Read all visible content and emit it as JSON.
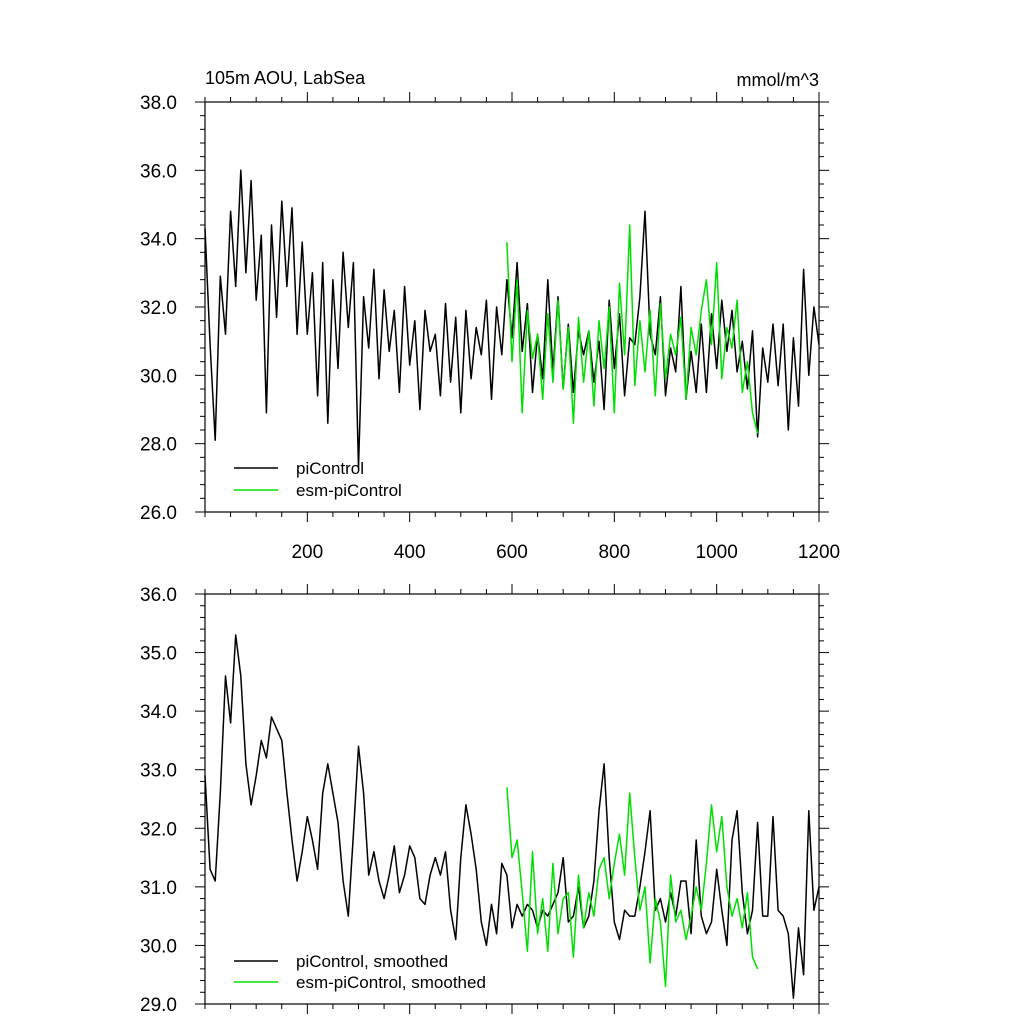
{
  "colors": {
    "piControl": "#000000",
    "esm_piControl": "#00e000"
  },
  "chart_data": [
    {
      "type": "line",
      "title": "105m AOU, LabSea",
      "units": "mmol/m^3",
      "xlim": [
        0,
        1200
      ],
      "ylim": [
        26,
        38
      ],
      "x_ticks": [
        200,
        400,
        600,
        800,
        1000,
        1200
      ],
      "x_tick_labels": [
        "200",
        "400",
        "600",
        "800",
        "1000",
        "1200"
      ],
      "y_ticks": [
        26,
        28,
        30,
        32,
        34,
        36,
        38
      ],
      "y_tick_labels": [
        "26.0",
        "28.0",
        "30.0",
        "32.0",
        "34.0",
        "36.0",
        "38.0"
      ],
      "legend": [
        "piControl",
        "esm-piControl"
      ],
      "legend_position": "bottom-left",
      "series": [
        {
          "name": "piControl",
          "x": [
            0,
            10,
            20,
            30,
            40,
            50,
            60,
            70,
            80,
            90,
            100,
            110,
            120,
            130,
            140,
            150,
            160,
            170,
            180,
            190,
            200,
            210,
            220,
            230,
            240,
            250,
            260,
            270,
            280,
            290,
            300,
            310,
            320,
            330,
            340,
            350,
            360,
            370,
            380,
            390,
            400,
            410,
            420,
            430,
            440,
            450,
            460,
            470,
            480,
            490,
            500,
            510,
            520,
            530,
            540,
            550,
            560,
            570,
            580,
            590,
            600,
            610,
            620,
            630,
            640,
            650,
            660,
            670,
            680,
            690,
            700,
            710,
            720,
            730,
            740,
            750,
            760,
            770,
            780,
            790,
            800,
            810,
            820,
            830,
            840,
            850,
            860,
            870,
            880,
            890,
            900,
            910,
            920,
            930,
            940,
            950,
            960,
            970,
            980,
            990,
            1000,
            1010,
            1020,
            1030,
            1040,
            1050,
            1060,
            1070,
            1080,
            1090,
            1100,
            1110,
            1120,
            1130,
            1140,
            1150,
            1160,
            1170,
            1180,
            1190,
            1200
          ],
          "values": [
            34.3,
            30.9,
            28.1,
            32.9,
            31.2,
            34.8,
            32.6,
            36.0,
            33.0,
            35.7,
            32.2,
            34.1,
            28.9,
            34.4,
            31.7,
            35.1,
            32.6,
            34.9,
            31.2,
            33.9,
            31.2,
            33.0,
            29.4,
            33.3,
            28.6,
            32.8,
            30.2,
            33.6,
            31.4,
            33.3,
            27.3,
            32.3,
            30.8,
            33.1,
            29.9,
            32.5,
            30.7,
            31.9,
            29.5,
            32.6,
            30.3,
            31.6,
            29.0,
            31.9,
            30.7,
            31.2,
            29.4,
            32.1,
            29.8,
            31.7,
            28.9,
            31.9,
            29.9,
            31.4,
            30.6,
            32.2,
            29.3,
            32.0,
            30.6,
            32.8,
            31.1,
            33.3,
            30.7,
            32.1,
            29.5,
            31.2,
            29.9,
            32.8,
            30.1,
            32.3,
            29.6,
            31.5,
            29.5,
            31.3,
            30.6,
            31.3,
            29.8,
            31.0,
            29.0,
            32.2,
            30.2,
            31.8,
            29.4,
            31.1,
            30.9,
            32.3,
            34.8,
            31.2,
            30.6,
            32.3,
            29.4,
            30.8,
            30.1,
            32.6,
            29.3,
            30.7,
            29.5,
            31.5,
            29.5,
            31.8,
            30.2,
            32.2,
            30.7,
            31.9,
            30.1,
            31.0,
            29.6,
            31.3,
            28.2,
            30.8,
            29.8,
            31.5,
            29.7,
            31.5,
            28.4,
            31.1,
            29.1,
            33.1,
            30.0,
            32.0,
            30.9
          ]
        },
        {
          "name": "esm-piControl",
          "x": [
            590,
            600,
            610,
            620,
            630,
            640,
            650,
            660,
            670,
            680,
            690,
            700,
            710,
            720,
            730,
            740,
            750,
            760,
            770,
            780,
            790,
            800,
            810,
            820,
            830,
            840,
            850,
            860,
            870,
            880,
            890,
            900,
            910,
            920,
            930,
            940,
            950,
            960,
            970,
            980,
            990,
            1000,
            1010,
            1020,
            1030,
            1040,
            1050,
            1060,
            1070,
            1080
          ],
          "values": [
            33.9,
            30.4,
            32.8,
            28.9,
            31.9,
            30.5,
            31.2,
            29.3,
            31.8,
            29.8,
            32.2,
            29.6,
            31.4,
            28.6,
            31.7,
            29.8,
            31.3,
            29.1,
            31.6,
            30.2,
            32.0,
            28.9,
            32.7,
            30.6,
            34.4,
            29.7,
            31.6,
            30.1,
            31.9,
            29.4,
            32.1,
            29.9,
            31.2,
            30.6,
            31.7,
            29.3,
            31.4,
            30.6,
            31.9,
            32.8,
            30.9,
            33.3,
            29.9,
            31.4,
            30.8,
            32.2,
            29.5,
            30.4,
            28.9,
            28.3
          ]
        }
      ]
    },
    {
      "type": "line",
      "xlim": [
        0,
        1200
      ],
      "ylim": [
        29,
        36
      ],
      "y_ticks": [
        29,
        30,
        31,
        32,
        33,
        34,
        35,
        36
      ],
      "y_tick_labels": [
        "29.0",
        "30.0",
        "31.0",
        "32.0",
        "33.0",
        "34.0",
        "35.0",
        "36.0"
      ],
      "legend": [
        "piControl, smoothed",
        "esm-piControl, smoothed"
      ],
      "legend_position": "bottom-left",
      "series": [
        {
          "name": "piControl, smoothed",
          "x": [
            0,
            10,
            20,
            30,
            40,
            50,
            60,
            70,
            80,
            90,
            100,
            110,
            120,
            130,
            140,
            150,
            160,
            170,
            180,
            190,
            200,
            210,
            220,
            230,
            240,
            250,
            260,
            270,
            280,
            290,
            300,
            310,
            320,
            330,
            340,
            350,
            360,
            370,
            380,
            390,
            400,
            410,
            420,
            430,
            440,
            450,
            460,
            470,
            480,
            490,
            500,
            510,
            520,
            530,
            540,
            550,
            560,
            570,
            580,
            590,
            600,
            610,
            620,
            630,
            640,
            650,
            660,
            670,
            680,
            690,
            700,
            710,
            720,
            730,
            740,
            750,
            760,
            770,
            780,
            790,
            800,
            810,
            820,
            830,
            840,
            850,
            860,
            870,
            880,
            890,
            900,
            910,
            920,
            930,
            940,
            950,
            960,
            970,
            980,
            990,
            1000,
            1010,
            1020,
            1030,
            1040,
            1050,
            1060,
            1070,
            1080,
            1090,
            1100,
            1110,
            1120,
            1130,
            1140,
            1150,
            1160,
            1170,
            1180,
            1190,
            1200
          ],
          "values": [
            32.9,
            31.3,
            31.1,
            32.6,
            34.6,
            33.8,
            35.3,
            34.6,
            33.1,
            32.4,
            32.9,
            33.5,
            33.2,
            33.9,
            33.7,
            33.5,
            32.6,
            31.8,
            31.1,
            31.6,
            32.2,
            31.8,
            31.3,
            32.6,
            33.1,
            32.6,
            32.1,
            31.1,
            30.5,
            31.9,
            33.4,
            32.6,
            31.2,
            31.6,
            31.1,
            30.8,
            31.2,
            31.7,
            30.9,
            31.2,
            31.7,
            31.5,
            30.8,
            30.7,
            31.2,
            31.5,
            31.2,
            31.6,
            30.6,
            30.1,
            31.5,
            32.4,
            31.9,
            31.3,
            30.4,
            30.0,
            30.7,
            30.2,
            31.4,
            31.2,
            30.3,
            30.7,
            30.5,
            30.7,
            30.6,
            30.3,
            30.6,
            30.5,
            30.7,
            30.9,
            31.5,
            30.4,
            30.5,
            31.0,
            30.3,
            30.5,
            31.1,
            32.3,
            33.1,
            31.5,
            30.4,
            30.1,
            30.6,
            30.5,
            30.5,
            31.0,
            31.6,
            32.3,
            30.6,
            30.8,
            30.4,
            30.9,
            30.5,
            31.1,
            31.1,
            30.2,
            31.8,
            30.5,
            30.2,
            30.4,
            31.3,
            30.6,
            30.0,
            31.8,
            32.3,
            30.9,
            30.2,
            30.6,
            32.1,
            30.5,
            30.5,
            32.2,
            30.6,
            30.5,
            30.2,
            29.1,
            30.3,
            29.5,
            32.3,
            30.6,
            31.0
          ]
        },
        {
          "name": "esm-piControl, smoothed",
          "x": [
            590,
            600,
            610,
            620,
            630,
            640,
            650,
            660,
            670,
            680,
            690,
            700,
            710,
            720,
            730,
            740,
            750,
            760,
            770,
            780,
            790,
            800,
            810,
            820,
            830,
            840,
            850,
            860,
            870,
            880,
            890,
            900,
            910,
            920,
            930,
            940,
            950,
            960,
            970,
            980,
            990,
            1000,
            1010,
            1020,
            1030,
            1040,
            1050,
            1060,
            1070,
            1080
          ],
          "values": [
            32.7,
            31.5,
            31.8,
            30.9,
            29.9,
            31.6,
            30.2,
            30.8,
            29.9,
            31.4,
            30.2,
            30.8,
            30.9,
            29.8,
            31.2,
            30.3,
            30.9,
            30.5,
            31.3,
            31.5,
            30.8,
            31.4,
            31.9,
            31.2,
            32.6,
            31.5,
            30.6,
            31.0,
            29.7,
            30.8,
            30.4,
            29.3,
            31.2,
            30.4,
            30.6,
            30.1,
            30.5,
            31.0,
            30.6,
            31.4,
            32.4,
            31.6,
            32.2,
            31.0,
            30.5,
            30.8,
            30.3,
            30.9,
            29.8,
            29.6
          ]
        }
      ]
    }
  ]
}
